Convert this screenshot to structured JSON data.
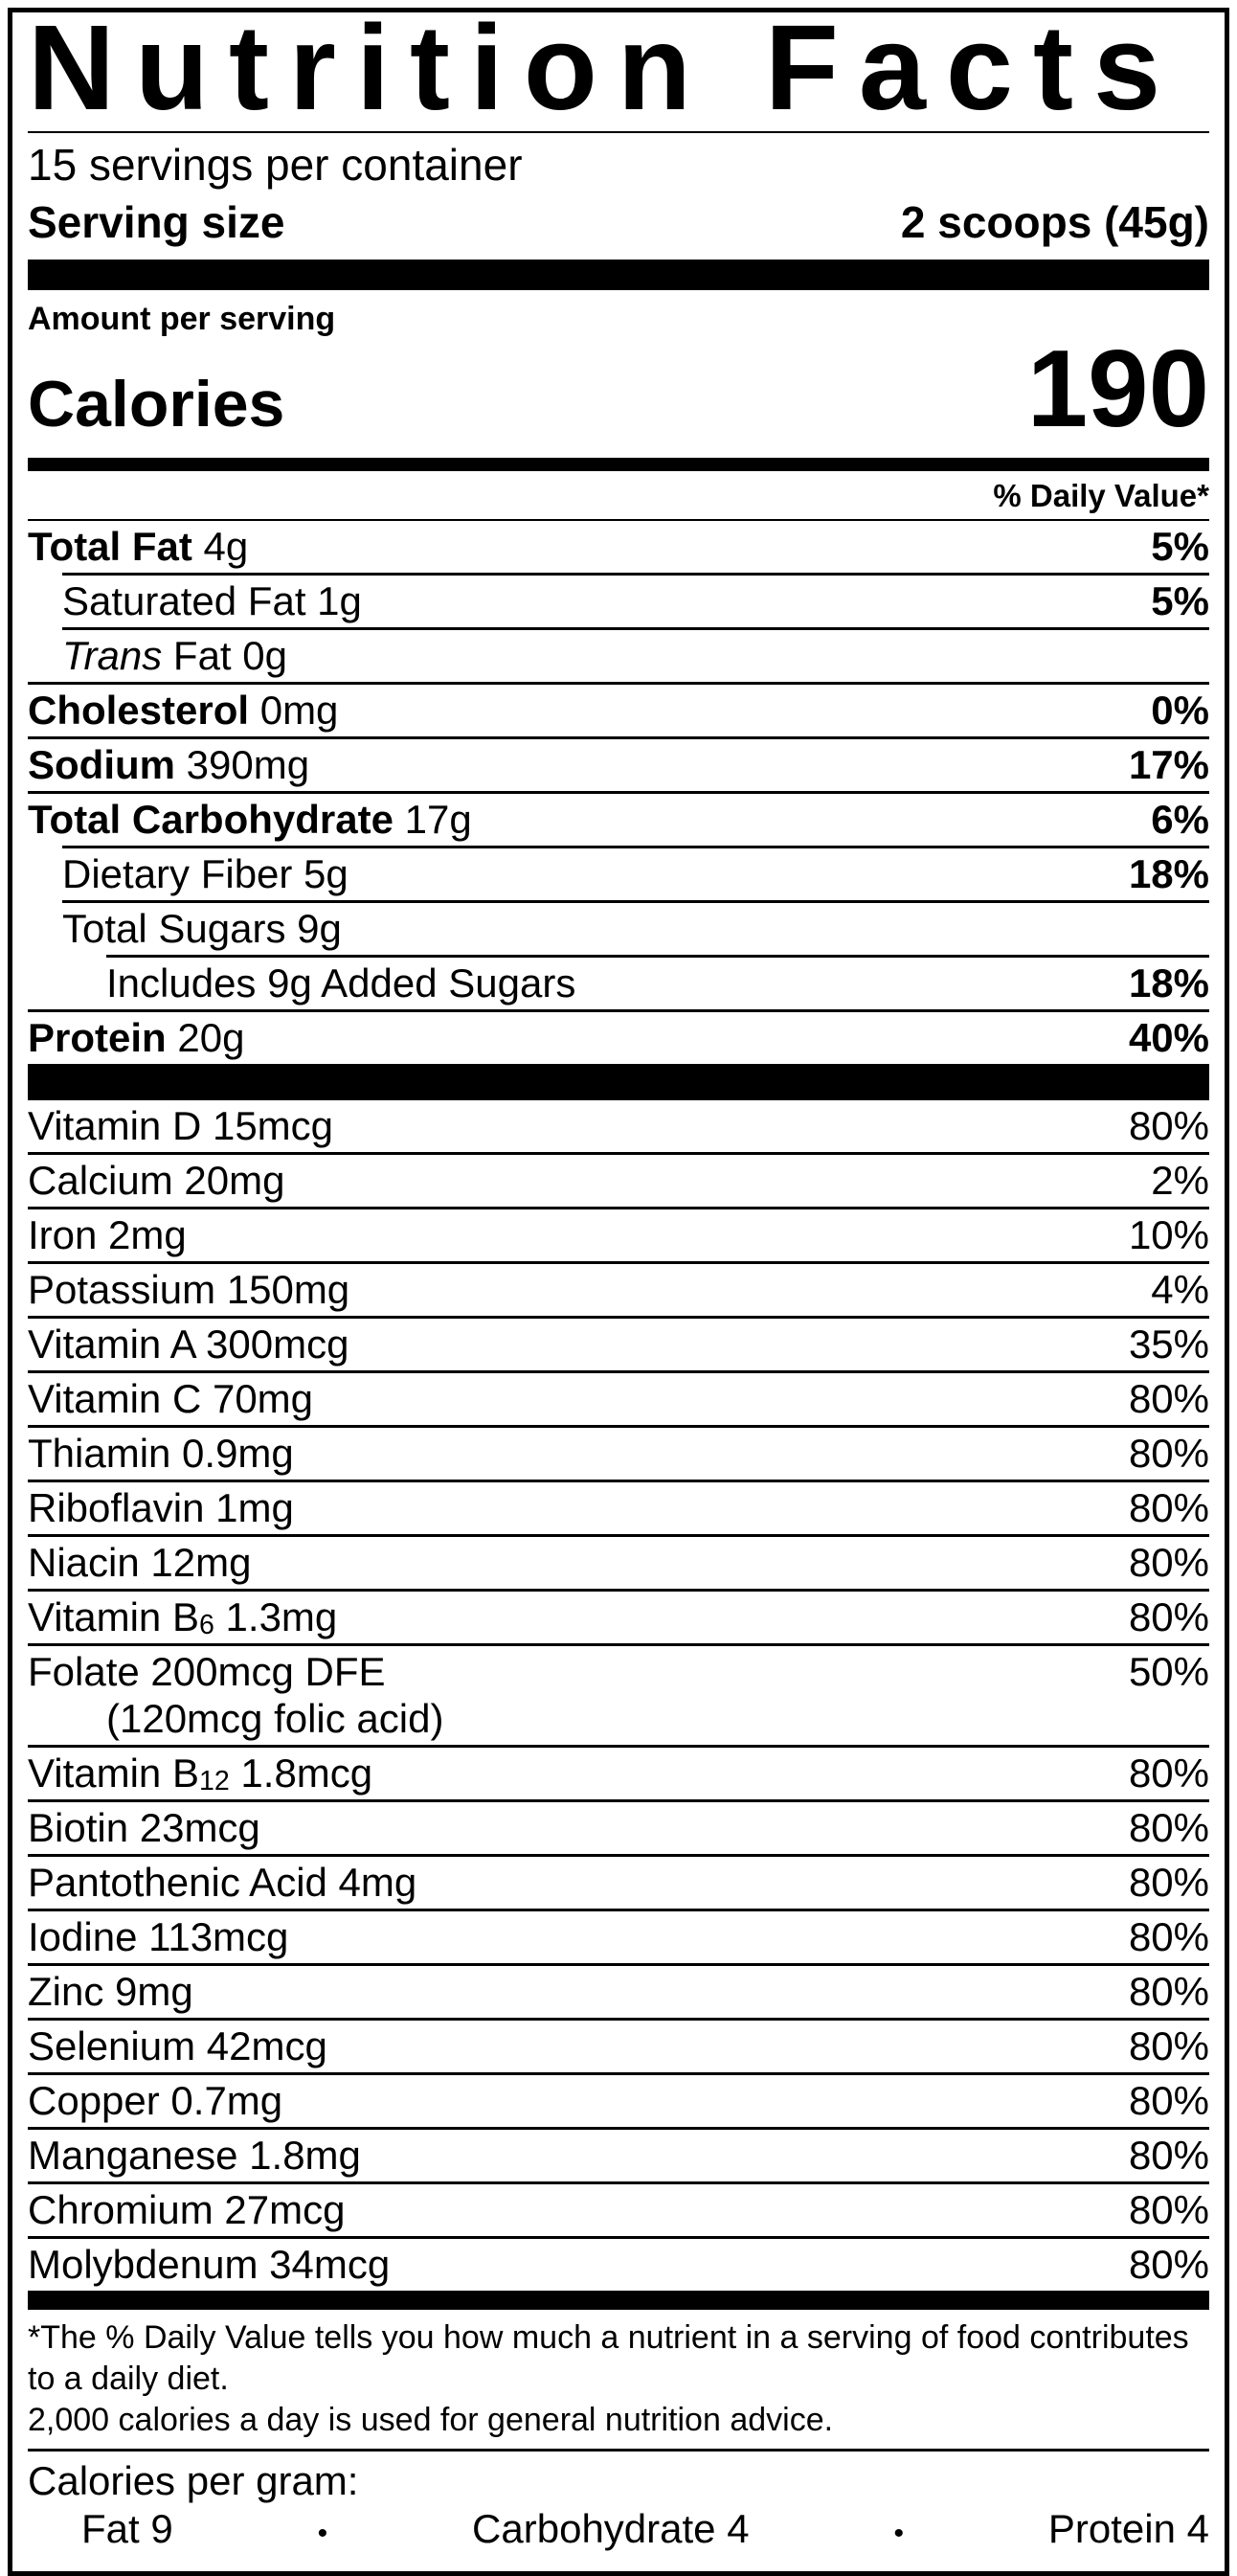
{
  "title": "Nutrition Facts",
  "servings_per_container": "15 servings per container",
  "serving_size": {
    "label": "Serving size",
    "value": "2 scoops (45g)"
  },
  "amount_per_serving": "Amount per serving",
  "calories": {
    "label": "Calories",
    "value": "190"
  },
  "daily_value_header": "% Daily Value*",
  "nutrients": [
    {
      "bold": "Total Fat",
      "rest": " 4g",
      "dv": "5%"
    },
    {
      "plain": "Saturated Fat 1g",
      "dv": "5%"
    },
    {
      "italic": "Trans",
      "rest": " Fat 0g",
      "dv": ""
    },
    {
      "bold": "Cholesterol",
      "rest": " 0mg",
      "dv": "0%"
    },
    {
      "bold": "Sodium",
      "rest": " 390mg",
      "dv": "17%"
    },
    {
      "bold": "Total Carbohydrate",
      "rest": " 17g",
      "dv": "6%"
    },
    {
      "plain": "Dietary Fiber 5g",
      "dv": "18%"
    },
    {
      "plain": "Total Sugars 9g",
      "dv": ""
    },
    {
      "plain": "Includes 9g Added Sugars",
      "dv": "18%"
    },
    {
      "bold": "Protein",
      "rest": " 20g",
      "dv": "40%"
    }
  ],
  "vitamins": [
    {
      "name": "Vitamin D 15mcg",
      "dv": "80%"
    },
    {
      "name": "Calcium 20mg",
      "dv": "2%"
    },
    {
      "name": "Iron 2mg",
      "dv": "10%"
    },
    {
      "name": "Potassium 150mg",
      "dv": "4%"
    },
    {
      "name": "Vitamin A 300mcg",
      "dv": "35%"
    },
    {
      "name": "Vitamin C 70mg",
      "dv": "80%"
    },
    {
      "name": "Thiamin 0.9mg",
      "dv": "80%"
    },
    {
      "name": "Riboflavin 1mg",
      "dv": "80%"
    },
    {
      "name": "Niacin 12mg",
      "dv": "80%"
    },
    {
      "pre": "Vitamin B",
      "sub": "6",
      "post": " 1.3mg",
      "dv": "80%"
    },
    {
      "name": "Folate 200mcg DFE",
      "name2": "(120mcg folic acid)",
      "dv": "50%"
    },
    {
      "pre": "Vitamin B",
      "sub": "12",
      "post": " 1.8mcg",
      "dv": "80%"
    },
    {
      "name": "Biotin 23mcg",
      "dv": "80%"
    },
    {
      "name": "Pantothenic Acid 4mg",
      "dv": "80%"
    },
    {
      "name": "Iodine 113mcg",
      "dv": "80%"
    },
    {
      "name": "Zinc 9mg",
      "dv": "80%"
    },
    {
      "name": "Selenium 42mcg",
      "dv": "80%"
    },
    {
      "name": "Copper 0.7mg",
      "dv": "80%"
    },
    {
      "name": "Manganese 1.8mg",
      "dv": "80%"
    },
    {
      "name": "Chromium 27mcg",
      "dv": "80%"
    },
    {
      "name": "Molybdenum 34mcg",
      "dv": "80%"
    }
  ],
  "footnote": {
    "line1": "*The % Daily Value tells you how much a nutrient in a serving of food contributes to a daily diet.",
    "line2": "2,000 calories a day is used for general nutrition advice."
  },
  "calories_per_gram": {
    "label": "Calories per gram:",
    "fat": "Fat 9",
    "carb": "Carbohydrate 4",
    "protein": "Protein 4",
    "bullet": "•"
  },
  "colors": {
    "ink": "#000000",
    "paper": "#ffffff"
  }
}
